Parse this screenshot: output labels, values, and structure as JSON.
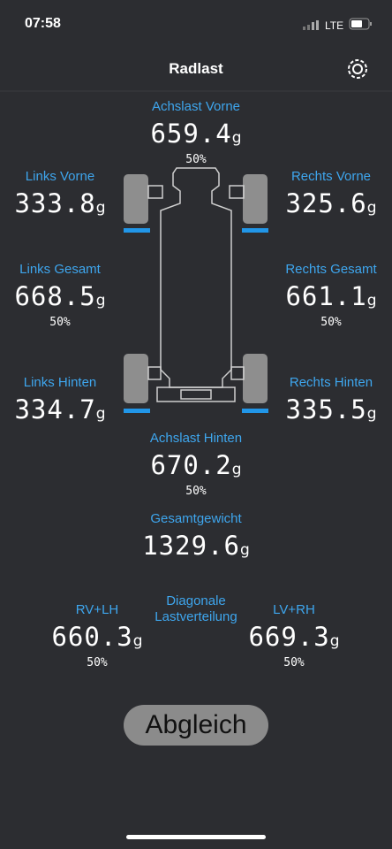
{
  "status_bar": {
    "time": "07:58",
    "network": "LTE"
  },
  "header": {
    "title": "Radlast"
  },
  "readings": [
    {
      "label": "Achslast Vorne",
      "value": "659.4",
      "unit": "g",
      "percent": "50%"
    },
    {
      "label": "Links Vorne",
      "value": "333.8",
      "unit": "g"
    },
    {
      "label": "Rechts Vorne",
      "value": "325.6",
      "unit": "g"
    },
    {
      "label": "Links Gesamt",
      "value": "668.5",
      "unit": "g",
      "percent": "50%"
    },
    {
      "label": "Rechts Gesamt",
      "value": "661.1",
      "unit": "g",
      "percent": "50%"
    },
    {
      "label": "Links Hinten",
      "value": "334.7",
      "unit": "g"
    },
    {
      "label": "Rechts Hinten",
      "value": "335.5",
      "unit": "g"
    },
    {
      "label": "Achslast Hinten",
      "value": "670.2",
      "unit": "g",
      "percent": "50%"
    },
    {
      "label": "Gesamtgewicht",
      "value": "1329.6",
      "unit": "g"
    },
    {
      "label": "RV+LH",
      "value": "660.3",
      "unit": "g",
      "percent": "50%"
    },
    {
      "label": "LV+RH",
      "value": "669.3",
      "unit": "g",
      "percent": "50%"
    }
  ],
  "diagonal_label": [
    "Diagonale",
    "Lastverteilung"
  ],
  "button": "Abgleich"
}
